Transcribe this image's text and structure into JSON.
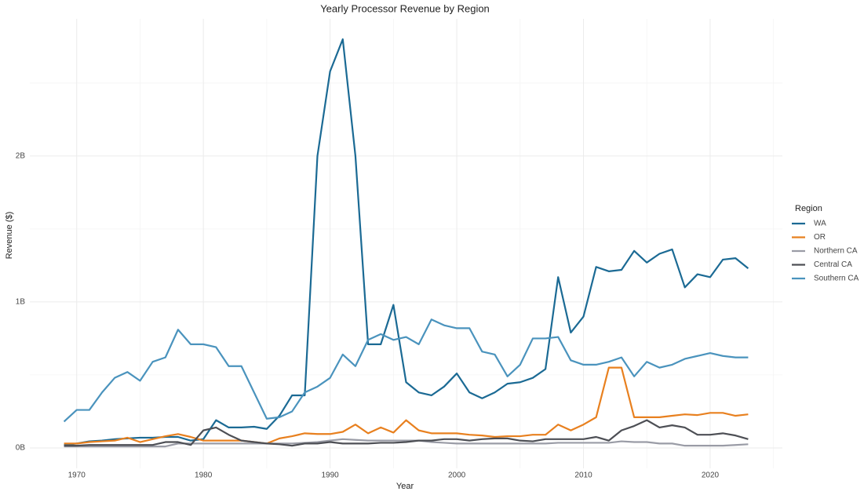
{
  "chart_data": {
    "type": "line",
    "title": "Yearly Processor Revenue by Region",
    "x_label": "Year",
    "y_label": "Revenue ($)",
    "legend_title": "Region",
    "legend": "right",
    "grid": true,
    "x": [
      1969,
      1970,
      1971,
      1972,
      1973,
      1974,
      1975,
      1976,
      1977,
      1978,
      1979,
      1980,
      1981,
      1982,
      1983,
      1984,
      1985,
      1986,
      1987,
      1988,
      1989,
      1990,
      1991,
      1992,
      1993,
      1994,
      1995,
      1996,
      1997,
      1998,
      1999,
      2000,
      2001,
      2002,
      2003,
      2004,
      2005,
      2006,
      2007,
      2008,
      2009,
      2010,
      2011,
      2012,
      2013,
      2014,
      2015,
      2016,
      2017,
      2018,
      2019,
      2020,
      2021,
      2022,
      2023
    ],
    "xlim": [
      1966.3,
      2025.7
    ],
    "xticks": [
      1970,
      1980,
      1990,
      2000,
      2010,
      2020
    ],
    "ylim": [
      -140000000.0,
      2940000000.0
    ],
    "yticks": [
      {
        "value": 0,
        "label": "0B"
      },
      {
        "value": 1000000000.0,
        "label": "1B"
      },
      {
        "value": 2000000000.0,
        "label": "2B"
      }
    ],
    "series": [
      {
        "name": "WA",
        "color": "#1b6a94",
        "values": [
          20000000.0,
          30000000.0,
          45000000.0,
          50000000.0,
          60000000.0,
          65000000.0,
          70000000.0,
          70000000.0,
          75000000.0,
          75000000.0,
          50000000.0,
          60000000.0,
          190000000.0,
          140000000.0,
          140000000.0,
          145000000.0,
          130000000.0,
          220000000.0,
          360000000.0,
          360000000.0,
          2000000000.0,
          2580000000.0,
          2800000000.0,
          2000000000.0,
          710000000.0,
          710000000.0,
          980000000.0,
          450000000.0,
          380000000.0,
          360000000.0,
          420000000.0,
          510000000.0,
          380000000.0,
          340000000.0,
          380000000.0,
          440000000.0,
          450000000.0,
          480000000.0,
          540000000.0,
          1170000000.0,
          790000000.0,
          900000000.0,
          1240000000.0,
          1210000000.0,
          1220000000.0,
          1350000000.0,
          1270000000.0,
          1330000000.0,
          1360000000.0,
          1100000000.0,
          1190000000.0,
          1170000000.0,
          1290000000.0,
          1300000000.0,
          1230000000.0
        ]
      },
      {
        "name": "OR",
        "color": "#e8801f",
        "values": [
          30000000.0,
          30000000.0,
          40000000.0,
          45000000.0,
          50000000.0,
          70000000.0,
          40000000.0,
          60000000.0,
          80000000.0,
          95000000.0,
          75000000.0,
          50000000.0,
          50000000.0,
          50000000.0,
          50000000.0,
          40000000.0,
          30000000.0,
          65000000.0,
          80000000.0,
          100000000.0,
          95000000.0,
          95000000.0,
          110000000.0,
          160000000.0,
          100000000.0,
          140000000.0,
          105000000.0,
          190000000.0,
          120000000.0,
          100000000.0,
          100000000.0,
          100000000.0,
          90000000.0,
          85000000.0,
          75000000.0,
          80000000.0,
          80000000.0,
          90000000.0,
          90000000.0,
          160000000.0,
          120000000.0,
          160000000.0,
          210000000.0,
          550000000.0,
          550000000.0,
          210000000.0,
          210000000.0,
          210000000.0,
          220000000.0,
          230000000.0,
          225000000.0,
          240000000.0,
          240000000.0,
          220000000.0,
          230000000.0
        ]
      },
      {
        "name": "Northern CA",
        "color": "#9a9ca6",
        "values": [
          10000000.0,
          10000000.0,
          10000000.0,
          10000000.0,
          10000000.0,
          10000000.0,
          10000000.0,
          10000000.0,
          10000000.0,
          30000000.0,
          30000000.0,
          30000000.0,
          30000000.0,
          30000000.0,
          30000000.0,
          30000000.0,
          30000000.0,
          30000000.0,
          30000000.0,
          35000000.0,
          40000000.0,
          50000000.0,
          60000000.0,
          55000000.0,
          50000000.0,
          50000000.0,
          50000000.0,
          50000000.0,
          50000000.0,
          40000000.0,
          35000000.0,
          30000000.0,
          30000000.0,
          30000000.0,
          30000000.0,
          30000000.0,
          30000000.0,
          30000000.0,
          30000000.0,
          35000000.0,
          35000000.0,
          35000000.0,
          35000000.0,
          35000000.0,
          45000000.0,
          40000000.0,
          40000000.0,
          30000000.0,
          30000000.0,
          15000000.0,
          15000000.0,
          15000000.0,
          15000000.0,
          20000000.0,
          25000000.0
        ]
      },
      {
        "name": "Central CA",
        "color": "#4d4f55",
        "values": [
          15000000.0,
          15000000.0,
          20000000.0,
          20000000.0,
          20000000.0,
          20000000.0,
          20000000.0,
          20000000.0,
          40000000.0,
          40000000.0,
          20000000.0,
          120000000.0,
          140000000.0,
          90000000.0,
          50000000.0,
          40000000.0,
          30000000.0,
          25000000.0,
          15000000.0,
          30000000.0,
          30000000.0,
          40000000.0,
          30000000.0,
          30000000.0,
          30000000.0,
          35000000.0,
          35000000.0,
          40000000.0,
          50000000.0,
          50000000.0,
          60000000.0,
          60000000.0,
          50000000.0,
          60000000.0,
          65000000.0,
          65000000.0,
          50000000.0,
          45000000.0,
          60000000.0,
          60000000.0,
          60000000.0,
          60000000.0,
          75000000.0,
          50000000.0,
          120000000.0,
          150000000.0,
          190000000.0,
          140000000.0,
          155000000.0,
          140000000.0,
          90000000.0,
          90000000.0,
          100000000.0,
          85000000.0,
          60000000.0
        ]
      },
      {
        "name": "Southern CA",
        "color": "#4a93bd",
        "values": [
          180000000.0,
          260000000.0,
          260000000.0,
          380000000.0,
          480000000.0,
          520000000.0,
          460000000.0,
          590000000.0,
          620000000.0,
          810000000.0,
          710000000.0,
          710000000.0,
          690000000.0,
          560000000.0,
          560000000.0,
          380000000.0,
          200000000.0,
          210000000.0,
          250000000.0,
          380000000.0,
          420000000.0,
          480000000.0,
          640000000.0,
          560000000.0,
          740000000.0,
          780000000.0,
          740000000.0,
          760000000.0,
          710000000.0,
          880000000.0,
          840000000.0,
          820000000.0,
          820000000.0,
          660000000.0,
          640000000.0,
          490000000.0,
          570000000.0,
          750000000.0,
          750000000.0,
          760000000.0,
          600000000.0,
          570000000.0,
          570000000.0,
          590000000.0,
          620000000.0,
          490000000.0,
          590000000.0,
          550000000.0,
          570000000.0,
          610000000.0,
          630000000.0,
          650000000.0,
          630000000.0,
          620000000.0,
          620000000.0
        ]
      }
    ]
  }
}
